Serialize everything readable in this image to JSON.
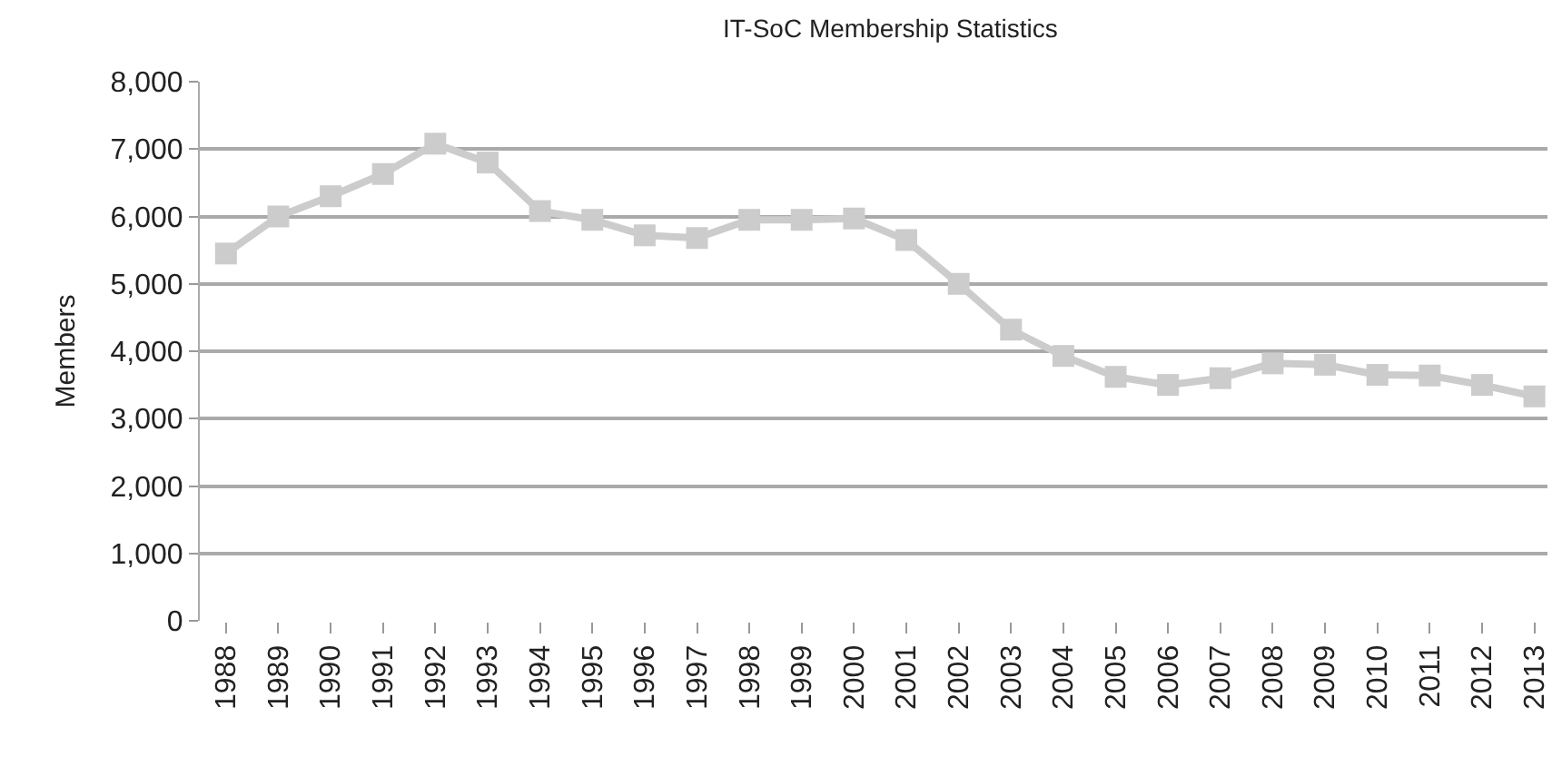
{
  "chart_data": {
    "type": "line",
    "title": "IT-SoC Membership Statistics",
    "ylabel": "Members",
    "categories": [
      "1988",
      "1989",
      "1990",
      "1991",
      "1992",
      "1993",
      "1994",
      "1995",
      "1996",
      "1997",
      "1998",
      "1999",
      "2000",
      "2001",
      "2002",
      "2003",
      "2004",
      "2005",
      "2006",
      "2007",
      "2008",
      "2009",
      "2010",
      "2011",
      "2012",
      "2013"
    ],
    "series": [
      {
        "color": "#cccccc",
        "values": [
          5450,
          6000,
          6300,
          6630,
          7080,
          6800,
          6080,
          5950,
          5720,
          5680,
          5950,
          5950,
          5970,
          5650,
          5000,
          4320,
          3930,
          3620,
          3500,
          3600,
          3820,
          3800,
          3650,
          3640,
          3500,
          3330
        ]
      }
    ],
    "ylim": [
      0,
      8000
    ],
    "yticks": [
      {
        "value": 0,
        "label": "0"
      },
      {
        "value": 1000,
        "label": "1,000"
      },
      {
        "value": 2000,
        "label": "2,000"
      },
      {
        "value": 3000,
        "label": "3,000"
      },
      {
        "value": 4000,
        "label": "4,000"
      },
      {
        "value": 5000,
        "label": "5,000"
      },
      {
        "value": 6000,
        "label": "6,000"
      },
      {
        "value": 7000,
        "label": "7,000"
      },
      {
        "value": 8000,
        "label": "8,000"
      }
    ],
    "grid": "y",
    "marker": "square",
    "line_style": "solid",
    "legend": false
  }
}
